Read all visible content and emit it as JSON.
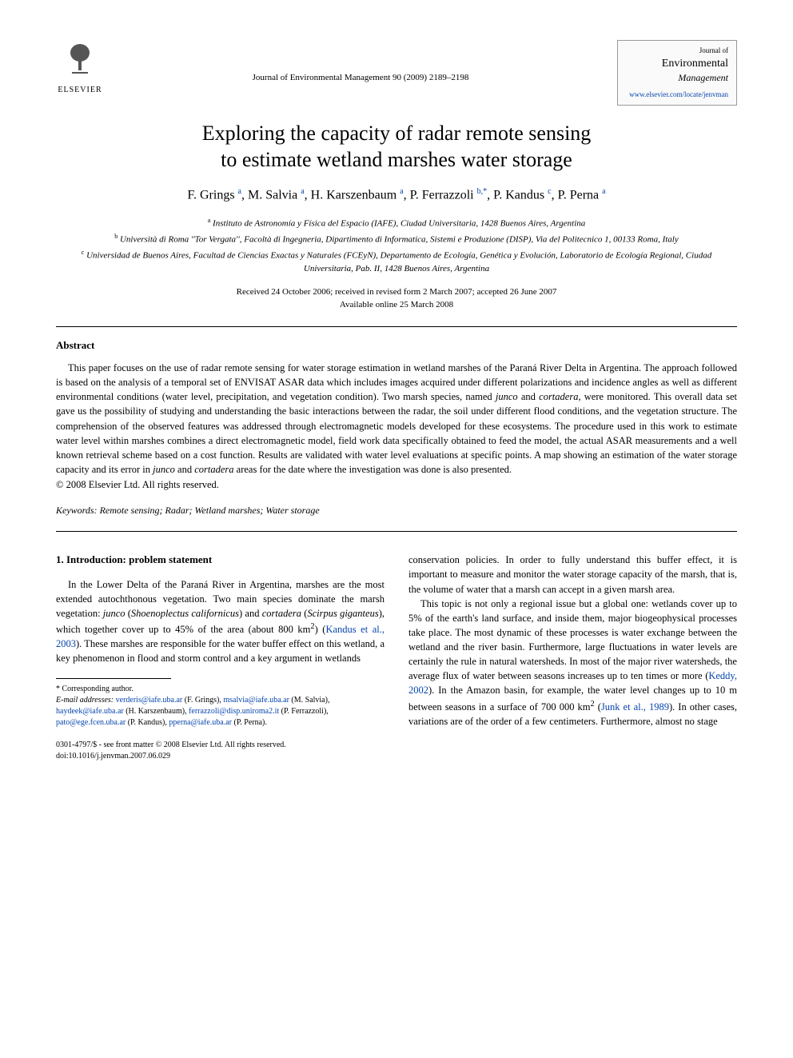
{
  "header": {
    "publisher": "ELSEVIER",
    "citation": "Journal of Environmental Management 90 (2009) 2189–2198",
    "journal_top": "Journal of",
    "journal_main": "Environmental",
    "journal_sub": "Management",
    "journal_url": "www.elsevier.com/locate/jenvman"
  },
  "title_line1": "Exploring the capacity of radar remote sensing",
  "title_line2": "to estimate wetland marshes water storage",
  "authors_html": "F. Grings <sup class='sup-link'>a</sup>, M. Salvia <sup class='sup-link'>a</sup>, H. Karszenbaum <sup class='sup-link'>a</sup>, P. Ferrazzoli <sup class='sup-link'>b,*</sup>, P. Kandus <sup class='sup-link'>c</sup>, P. Perna <sup class='sup-link'>a</sup>",
  "affiliations": [
    "<sup>a</sup> Instituto de Astronomía y Física del Espacio (IAFE), Ciudad Universitaria, 1428 Buenos Aires, Argentina",
    "<sup>b</sup> Università di Roma ''Tor Vergata'', Facoltà di Ingegneria, Dipartimento di Informatica, Sistemi e Produzione (DISP), Via del Politecnico 1, 00133 Roma, Italy",
    "<sup>c</sup> Universidad de Buenos Aires, Facultad de Ciencias Exactas y Naturales (FCEyN), Departamento de Ecología, Genética y Evolución, Laboratorio de Ecología Regional, Ciudad Universitaria, Pab. II, 1428 Buenos Aires, Argentina"
  ],
  "dates_line1": "Received 24 October 2006; received in revised form 2 March 2007; accepted 26 June 2007",
  "dates_line2": "Available online 25 March 2008",
  "abstract": {
    "heading": "Abstract",
    "body": "This paper focuses on the use of radar remote sensing for water storage estimation in wetland marshes of the Paraná River Delta in Argentina. The approach followed is based on the analysis of a temporal set of ENVISAT ASAR data which includes images acquired under different polarizations and incidence angles as well as different environmental conditions (water level, precipitation, and vegetation condition). Two marsh species, named <span class='species'>junco</span> and <span class='species'>cortadera</span>, were monitored. This overall data set gave us the possibility of studying and understanding the basic interactions between the radar, the soil under different flood conditions, and the vegetation structure. The comprehension of the observed features was addressed through electromagnetic models developed for these ecosystems. The procedure used in this work to estimate water level within marshes combines a direct electromagnetic model, field work data specifically obtained to feed the model, the actual ASAR measurements and a well known retrieval scheme based on a cost function. Results are validated with water level evaluations at specific points. A map showing an estimation of the water storage capacity and its error in <span class='species'>junco</span> and <span class='species'>cortadera</span> areas for the date where the investigation was done is also presented.",
    "copyright": "© 2008 Elsevier Ltd. All rights reserved."
  },
  "keywords": {
    "label": "Keywords:",
    "list": "Remote sensing; Radar; Wetland marshes; Water storage"
  },
  "section1": {
    "heading": "1. Introduction: problem statement",
    "col1_p1": "In the Lower Delta of the Paraná River in Argentina, marshes are the most extended autochthonous vegetation. Two main species dominate the marsh vegetation: <span class='species'>junco</span> (<span class='species'>Shoenoplectus californicus</span>) and <span class='species'>cortadera</span> (<span class='species'>Scirpus giganteus</span>), which together cover up to 45% of the area (about 800 km<sup>2</sup>) (<span class='cite'>Kandus et al., 2003</span>). These marshes are responsible for the water buffer effect on this wetland, a key phenomenon in flood and storm control and a key argument in wetlands",
    "col2_p1": "conservation policies. In order to fully understand this buffer effect, it is important to measure and monitor the water storage capacity of the marsh, that is, the volume of water that a marsh can accept in a given marsh area.",
    "col2_p2": "This topic is not only a regional issue but a global one: wetlands cover up to 5% of the earth's land surface, and inside them, major biogeophysical processes take place. The most dynamic of these processes is water exchange between the wetland and the river basin. Furthermore, large fluctuations in water levels are certainly the rule in natural watersheds. In most of the major river watersheds, the average flux of water between seasons increases up to ten times or more (<span class='cite'>Keddy, 2002</span>). In the Amazon basin, for example, the water level changes up to 10 m between seasons in a surface of 700 000 km<sup>2</sup> (<span class='cite'>Junk et al., 1989</span>). In other cases, variations are of the order of a few centimeters. Furthermore, almost no stage"
  },
  "footnotes": {
    "corresponding": "* Corresponding author.",
    "emails_label": "E-mail addresses:",
    "emails": [
      {
        "addr": "verderis@iafe.uba.ar",
        "who": "(F. Grings)"
      },
      {
        "addr": "msalvia@iafe.uba.ar",
        "who": "(M. Salvia)"
      },
      {
        "addr": "haydeek@iafe.uba.ar",
        "who": "(H. Karszenbaum)"
      },
      {
        "addr": "ferrazzoli@disp.uniroma2.it",
        "who": "(P. Ferrazzoli)"
      },
      {
        "addr": "pato@ege.fcen.uba.ar",
        "who": "(P. Kandus)"
      },
      {
        "addr": "pperna@iafe.uba.ar",
        "who": "(P. Perna)"
      }
    ]
  },
  "footer": {
    "line1": "0301-4797/$ - see front matter © 2008 Elsevier Ltd. All rights reserved.",
    "line2": "doi:10.1016/j.jenvman.2007.06.029"
  }
}
